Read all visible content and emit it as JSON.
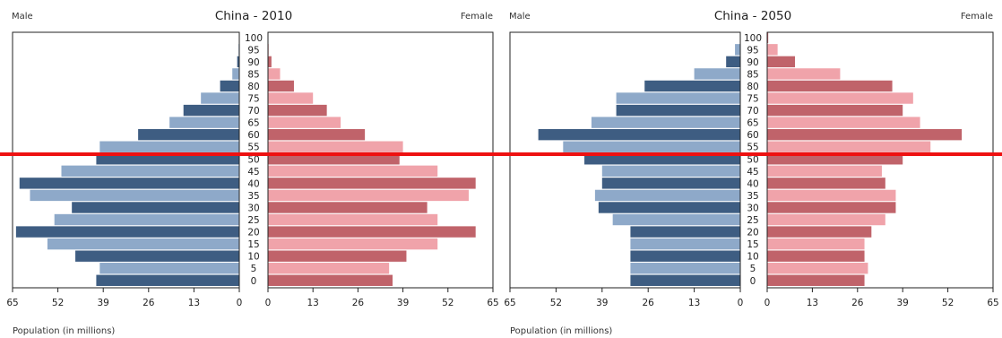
{
  "chart_data": [
    {
      "type": "bar",
      "title": "China - 2010",
      "left_label": "Male",
      "right_label": "Female",
      "xlabel": "Population (in millions)",
      "xlim": [
        0,
        65
      ],
      "xticks": [
        "65",
        "52",
        "39",
        "26",
        "13",
        "0"
      ],
      "xticks_right": [
        "0",
        "13",
        "26",
        "39",
        "52",
        "65"
      ],
      "categories": [
        "100",
        "95",
        "90",
        "85",
        "80",
        "75",
        "70",
        "65",
        "60",
        "55",
        "50",
        "45",
        "40",
        "35",
        "30",
        "25",
        "20",
        "15",
        "10",
        "5",
        "0"
      ],
      "series": [
        {
          "name": "Male",
          "values": [
            0,
            0.2,
            0.6,
            2,
            5.5,
            11,
            16,
            20,
            29,
            40,
            41,
            51,
            63,
            60,
            48,
            53,
            64,
            55,
            47,
            40,
            41
          ]
        },
        {
          "name": "Female",
          "values": [
            0,
            0.2,
            1,
            3.5,
            7.5,
            13,
            17,
            21,
            28,
            39,
            38,
            49,
            60,
            58,
            46,
            49,
            60,
            49,
            40,
            35,
            36
          ]
        }
      ]
    },
    {
      "type": "bar",
      "title": "China - 2050",
      "left_label": "Male",
      "right_label": "Female",
      "xlabel": "Population (in millions)",
      "xlim": [
        0,
        65
      ],
      "xticks": [
        "65",
        "52",
        "39",
        "26",
        "13",
        "0"
      ],
      "xticks_right": [
        "0",
        "13",
        "26",
        "39",
        "52",
        "65"
      ],
      "categories": [
        "100",
        "95",
        "90",
        "85",
        "80",
        "75",
        "70",
        "65",
        "60",
        "55",
        "50",
        "45",
        "40",
        "35",
        "30",
        "25",
        "20",
        "15",
        "10",
        "5",
        "0"
      ],
      "series": [
        {
          "name": "Male",
          "values": [
            0,
            1.5,
            4,
            13,
            27,
            35,
            35,
            42,
            57,
            50,
            44,
            39,
            39,
            41,
            40,
            36,
            31,
            31,
            31,
            31,
            31
          ]
        },
        {
          "name": "Female",
          "values": [
            0.3,
            3,
            8,
            21,
            36,
            42,
            39,
            44,
            56,
            47,
            39,
            33,
            34,
            37,
            37,
            34,
            30,
            28,
            28,
            29,
            28
          ]
        }
      ]
    }
  ],
  "colors": {
    "male_dark": "#3e5d82",
    "male_light": "#8ea9c9",
    "female_dark": "#c0636a",
    "female_light": "#f0a3aa",
    "marker_line": "#ee1111"
  }
}
